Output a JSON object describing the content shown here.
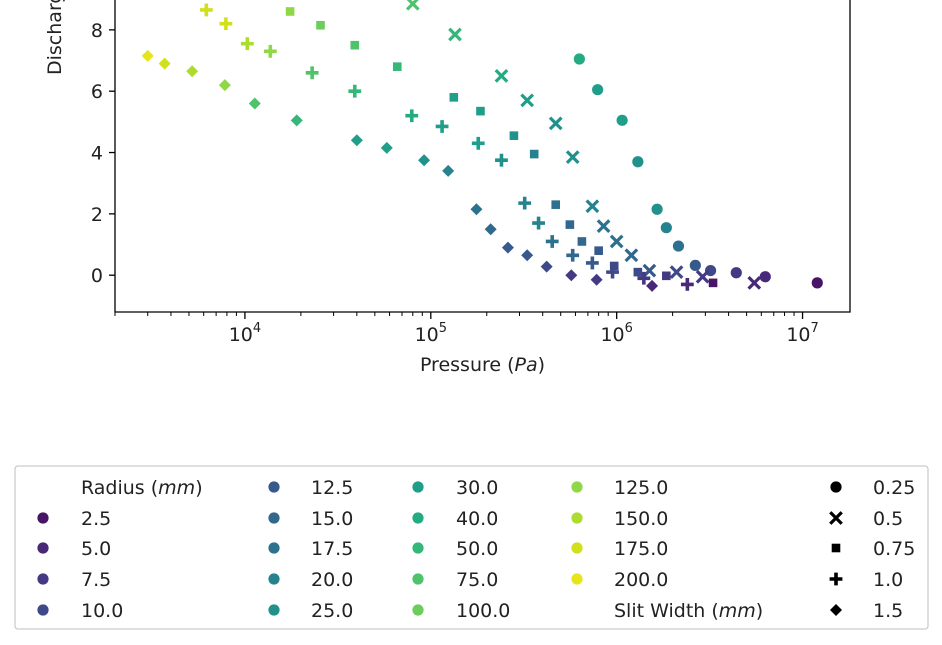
{
  "chart_data": {
    "type": "scatter",
    "title": "",
    "xlabel_prefix": "Pressure (",
    "xlabel_unit": "Pa",
    "xlabel_suffix": ")",
    "ylabel": "Discharge Ratio",
    "xscale": "log",
    "xlim": [
      2000,
      18000000
    ],
    "ylim": [
      -1.2,
      9.3
    ],
    "y_ticks": [
      0,
      2,
      4,
      6,
      8
    ],
    "x_ticks": [
      {
        "value": 10000,
        "label": "10",
        "exp": "4"
      },
      {
        "value": 100000,
        "label": "10",
        "exp": "5"
      },
      {
        "value": 1000000,
        "label": "10",
        "exp": "6"
      },
      {
        "value": 10000000,
        "label": "10",
        "exp": "7"
      }
    ],
    "grid": false,
    "legend_position": "below",
    "legend": {
      "radius_title_prefix": "Radius (",
      "radius_title_unit": "mm",
      "radius_title_suffix": ")",
      "slit_title_prefix": "Slit Width (",
      "slit_title_unit": "mm",
      "slit_title_suffix": ")",
      "radius_entries": [
        {
          "label": "2.5",
          "color": "#481467"
        },
        {
          "label": "5.0",
          "color": "#482878"
        },
        {
          "label": "7.5",
          "color": "#443983"
        },
        {
          "label": "10.0",
          "color": "#3e4989"
        },
        {
          "label": "12.5",
          "color": "#375a8c"
        },
        {
          "label": "15.0",
          "color": "#31688e"
        },
        {
          "label": "17.5",
          "color": "#2c728e"
        },
        {
          "label": "20.0",
          "color": "#26828e"
        },
        {
          "label": "25.0",
          "color": "#21918c"
        },
        {
          "label": "30.0",
          "color": "#1f9e89"
        },
        {
          "label": "40.0",
          "color": "#25ab82"
        },
        {
          "label": "50.0",
          "color": "#35b779"
        },
        {
          "label": "75.0",
          "color": "#4ec36b"
        },
        {
          "label": "100.0",
          "color": "#6ccd5a"
        },
        {
          "label": "125.0",
          "color": "#8fd744"
        },
        {
          "label": "150.0",
          "color": "#addc30"
        },
        {
          "label": "175.0",
          "color": "#d0e11c"
        },
        {
          "label": "200.0",
          "color": "#e7e419"
        }
      ],
      "slit_entries": [
        {
          "label": "0.25",
          "marker": "circle"
        },
        {
          "label": "0.5",
          "marker": "x"
        },
        {
          "label": "0.75",
          "marker": "square"
        },
        {
          "label": "1.0",
          "marker": "plus"
        },
        {
          "label": "1.5",
          "marker": "diamond"
        }
      ]
    },
    "series": [
      {
        "slit_width": "0.25",
        "marker": "circle",
        "points": [
          {
            "x": 12000000,
            "y": -0.25,
            "color": "#481467"
          },
          {
            "x": 6300000,
            "y": -0.05,
            "color": "#482878"
          },
          {
            "x": 4400000,
            "y": 0.08,
            "color": "#443983"
          },
          {
            "x": 3200000,
            "y": 0.15,
            "color": "#3e4989"
          },
          {
            "x": 2650000,
            "y": 0.32,
            "color": "#375a8c"
          },
          {
            "x": 2150000,
            "y": 0.95,
            "color": "#2c728e"
          },
          {
            "x": 1850000,
            "y": 1.55,
            "color": "#26828e"
          },
          {
            "x": 1650000,
            "y": 2.15,
            "color": "#21918c"
          },
          {
            "x": 1300000,
            "y": 3.7,
            "color": "#21918c"
          },
          {
            "x": 1070000,
            "y": 5.05,
            "color": "#1f9e89"
          },
          {
            "x": 790000,
            "y": 6.05,
            "color": "#1f9e89"
          },
          {
            "x": 630000,
            "y": 7.05,
            "color": "#25ab82"
          }
        ]
      },
      {
        "slit_width": "0.5",
        "marker": "x",
        "points": [
          {
            "x": 5500000,
            "y": -0.25,
            "color": "#482878"
          },
          {
            "x": 2900000,
            "y": -0.05,
            "color": "#443983"
          },
          {
            "x": 2100000,
            "y": 0.1,
            "color": "#3e4989"
          },
          {
            "x": 1500000,
            "y": 0.15,
            "color": "#375a8c"
          },
          {
            "x": 1200000,
            "y": 0.65,
            "color": "#31688e"
          },
          {
            "x": 1000000,
            "y": 1.1,
            "color": "#2c728e"
          },
          {
            "x": 850000,
            "y": 1.6,
            "color": "#2c728e"
          },
          {
            "x": 740000,
            "y": 2.25,
            "color": "#26828e"
          },
          {
            "x": 580000,
            "y": 3.85,
            "color": "#21918c"
          },
          {
            "x": 470000,
            "y": 4.95,
            "color": "#21918c"
          },
          {
            "x": 330000,
            "y": 5.7,
            "color": "#1f9e89"
          },
          {
            "x": 240000,
            "y": 6.5,
            "color": "#25ab82"
          },
          {
            "x": 135000,
            "y": 7.85,
            "color": "#35b779"
          },
          {
            "x": 80000,
            "y": 8.85,
            "color": "#4ec36b"
          }
        ]
      },
      {
        "slit_width": "0.75",
        "marker": "square",
        "points": [
          {
            "x": 3300000,
            "y": -0.25,
            "color": "#481467"
          },
          {
            "x": 1850000,
            "y": -0.02,
            "color": "#443983"
          },
          {
            "x": 1300000,
            "y": 0.1,
            "color": "#3e4989"
          },
          {
            "x": 970000,
            "y": 0.3,
            "color": "#3e4989"
          },
          {
            "x": 800000,
            "y": 0.8,
            "color": "#375a8c"
          },
          {
            "x": 650000,
            "y": 1.1,
            "color": "#31688e"
          },
          {
            "x": 560000,
            "y": 1.65,
            "color": "#31688e"
          },
          {
            "x": 470000,
            "y": 2.3,
            "color": "#2c728e"
          },
          {
            "x": 360000,
            "y": 3.95,
            "color": "#26828e"
          },
          {
            "x": 280000,
            "y": 4.55,
            "color": "#21918c"
          },
          {
            "x": 185000,
            "y": 5.35,
            "color": "#1f9e89"
          },
          {
            "x": 133000,
            "y": 5.8,
            "color": "#1f9e89"
          },
          {
            "x": 66000,
            "y": 6.8,
            "color": "#35b779"
          },
          {
            "x": 39000,
            "y": 7.5,
            "color": "#4ec36b"
          },
          {
            "x": 25500,
            "y": 8.15,
            "color": "#6ccd5a"
          },
          {
            "x": 17500,
            "y": 8.6,
            "color": "#8fd744"
          }
        ]
      },
      {
        "slit_width": "1.0",
        "marker": "plus",
        "points": [
          {
            "x": 2400000,
            "y": -0.3,
            "color": "#482878"
          },
          {
            "x": 1400000,
            "y": -0.1,
            "color": "#443983"
          },
          {
            "x": 950000,
            "y": 0.1,
            "color": "#3e4989"
          },
          {
            "x": 740000,
            "y": 0.4,
            "color": "#375a8c"
          },
          {
            "x": 580000,
            "y": 0.65,
            "color": "#31688e"
          },
          {
            "x": 450000,
            "y": 1.1,
            "color": "#2c728e"
          },
          {
            "x": 380000,
            "y": 1.7,
            "color": "#26828e"
          },
          {
            "x": 320000,
            "y": 2.35,
            "color": "#26828e"
          },
          {
            "x": 240000,
            "y": 3.75,
            "color": "#21918c"
          },
          {
            "x": 180000,
            "y": 4.3,
            "color": "#1f9e89"
          },
          {
            "x": 115000,
            "y": 4.85,
            "color": "#1f9e89"
          },
          {
            "x": 79000,
            "y": 5.2,
            "color": "#25ab82"
          },
          {
            "x": 39000,
            "y": 6.0,
            "color": "#35b779"
          },
          {
            "x": 23000,
            "y": 6.6,
            "color": "#4ec36b"
          },
          {
            "x": 13700,
            "y": 7.3,
            "color": "#8fd744"
          },
          {
            "x": 10300,
            "y": 7.55,
            "color": "#addc30"
          },
          {
            "x": 7900,
            "y": 8.2,
            "color": "#d0e11c"
          },
          {
            "x": 6200,
            "y": 8.65,
            "color": "#d0e11c"
          }
        ]
      },
      {
        "slit_width": "1.5",
        "marker": "diamond",
        "points": [
          {
            "x": 1550000,
            "y": -0.35,
            "color": "#482878"
          },
          {
            "x": 780000,
            "y": -0.15,
            "color": "#443983"
          },
          {
            "x": 570000,
            "y": 0.0,
            "color": "#443983"
          },
          {
            "x": 420000,
            "y": 0.28,
            "color": "#3e4989"
          },
          {
            "x": 330000,
            "y": 0.65,
            "color": "#375a8c"
          },
          {
            "x": 260000,
            "y": 0.9,
            "color": "#375a8c"
          },
          {
            "x": 210000,
            "y": 1.5,
            "color": "#31688e"
          },
          {
            "x": 176000,
            "y": 2.15,
            "color": "#2c728e"
          },
          {
            "x": 124000,
            "y": 3.4,
            "color": "#26828e"
          },
          {
            "x": 92000,
            "y": 3.75,
            "color": "#21918c"
          },
          {
            "x": 58000,
            "y": 4.15,
            "color": "#1f9e89"
          },
          {
            "x": 40000,
            "y": 4.4,
            "color": "#1f9e89"
          },
          {
            "x": 19000,
            "y": 5.05,
            "color": "#35b779"
          },
          {
            "x": 11300,
            "y": 5.6,
            "color": "#4ec36b"
          },
          {
            "x": 7800,
            "y": 6.2,
            "color": "#8fd744"
          },
          {
            "x": 5200,
            "y": 6.65,
            "color": "#addc30"
          },
          {
            "x": 3700,
            "y": 6.9,
            "color": "#d0e11c"
          },
          {
            "x": 3000,
            "y": 7.15,
            "color": "#e7e419"
          }
        ]
      }
    ]
  }
}
